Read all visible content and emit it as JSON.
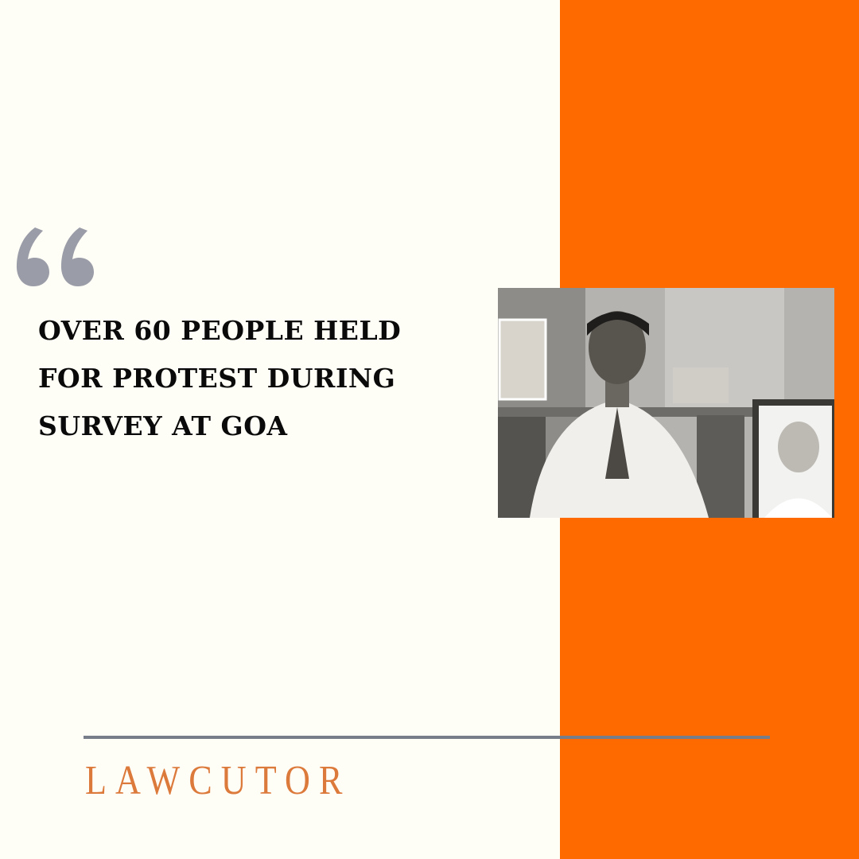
{
  "colors": {
    "background": "#fffef6",
    "accent_panel": "#ff6a00",
    "quote_mark": "#9a9ca8",
    "rule": "#787d8a",
    "brand": "#dc7a3c"
  },
  "quote_icon": "double-quote-open",
  "headline": {
    "lines": [
      "OVER 60 PEOPLE HELD",
      "FOR PROTEST DURING",
      "SURVEY AT GOA"
    ]
  },
  "photo": {
    "style": "grayscale"
  },
  "brand": {
    "name": "LAWCUTOR"
  }
}
